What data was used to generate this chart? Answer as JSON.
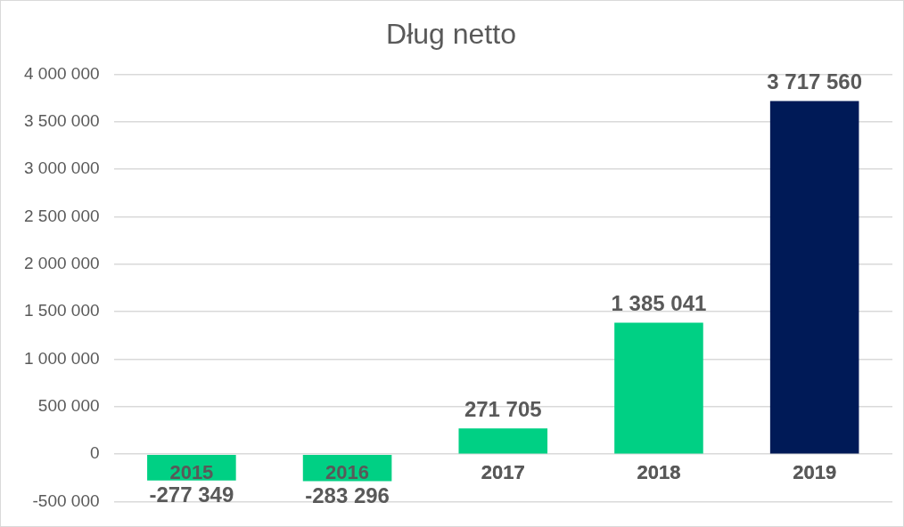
{
  "chart_data": {
    "type": "bar",
    "title": "Dług netto",
    "categories": [
      "2015",
      "2016",
      "2017",
      "2018",
      "2019"
    ],
    "values": [
      -277349,
      -283296,
      271705,
      1385041,
      3717560
    ],
    "colors": [
      "#00d084",
      "#00d084",
      "#00d084",
      "#00d084",
      "#001a57"
    ],
    "value_labels": [
      "-277 349",
      "-283 296",
      "271 705",
      "1 385 041",
      "3 717 560"
    ],
    "ylim": [
      -500000,
      4000000
    ],
    "yticks": [
      {
        "value": -500000,
        "label": "-500 000"
      },
      0,
      {
        "value": 500000,
        "label": "500 000"
      },
      {
        "value": 1000000,
        "label": "1 000 000"
      },
      {
        "value": 1500000,
        "label": "1 500 000"
      },
      {
        "value": 2000000,
        "label": "2 000 000"
      },
      {
        "value": 2500000,
        "label": "2 500 000"
      },
      {
        "value": 3000000,
        "label": "3 000 000"
      },
      {
        "value": 3500000,
        "label": "3 500 000"
      },
      {
        "value": 4000000,
        "label": "4 000 000"
      }
    ],
    "grid": "y",
    "legend": false
  }
}
